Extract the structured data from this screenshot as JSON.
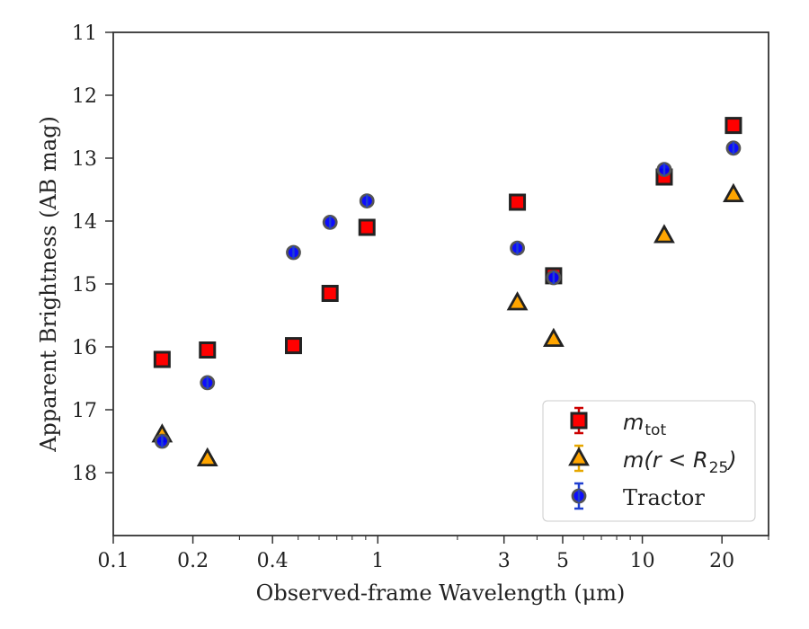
{
  "chart_data": {
    "type": "scatter",
    "xlabel": "Observed-frame Wavelength (μm)",
    "ylabel": "Apparent Brightness (AB mag)",
    "x_scale": "log",
    "xlim": [
      0.1,
      30
    ],
    "ylim": [
      19,
      11
    ],
    "y_inverted": true,
    "x_ticks": [
      0.1,
      0.2,
      0.4,
      1,
      3,
      5,
      10,
      20
    ],
    "x_tick_labels": [
      "0.1",
      "0.2",
      "0.4",
      "1",
      "3",
      "5",
      "10",
      "20"
    ],
    "y_ticks": [
      11,
      12,
      13,
      14,
      15,
      16,
      17,
      18
    ],
    "y_tick_labels": [
      "11",
      "12",
      "13",
      "14",
      "15",
      "16",
      "17",
      "18"
    ],
    "grid": false,
    "legend_position": "bottom-right",
    "series": [
      {
        "name": "m_tot",
        "legend_label": "m_tot",
        "marker": "square",
        "color": "#ff0000",
        "edge": "#222222",
        "errorbar_color": "#cc0000",
        "points": [
          {
            "x": 0.153,
            "y": 16.2
          },
          {
            "x": 0.227,
            "y": 16.05
          },
          {
            "x": 0.48,
            "y": 15.98
          },
          {
            "x": 0.66,
            "y": 15.15
          },
          {
            "x": 0.91,
            "y": 14.1
          },
          {
            "x": 3.37,
            "y": 13.7
          },
          {
            "x": 4.62,
            "y": 14.87
          },
          {
            "x": 12.1,
            "y": 13.3
          },
          {
            "x": 22.1,
            "y": 12.48
          }
        ]
      },
      {
        "name": "m(r < R25)",
        "legend_label": "m(r < R25)",
        "marker": "triangle",
        "color": "#ffa500",
        "edge": "#222222",
        "errorbar_color": "#e6a700",
        "points": [
          {
            "x": 0.153,
            "y": 17.4
          },
          {
            "x": 0.227,
            "y": 17.78
          },
          {
            "x": 3.37,
            "y": 15.3
          },
          {
            "x": 4.62,
            "y": 15.88
          },
          {
            "x": 12.1,
            "y": 14.23
          },
          {
            "x": 22.1,
            "y": 13.58
          }
        ]
      },
      {
        "name": "Tractor",
        "legend_label": "Tractor",
        "marker": "circle",
        "color": "#0000ff",
        "edge": "#555555",
        "errorbar_color": "#1f3fd0",
        "points": [
          {
            "x": 0.153,
            "y": 17.5
          },
          {
            "x": 0.227,
            "y": 16.57
          },
          {
            "x": 0.48,
            "y": 14.5
          },
          {
            "x": 0.66,
            "y": 14.02
          },
          {
            "x": 0.91,
            "y": 13.68
          },
          {
            "x": 3.37,
            "y": 14.43
          },
          {
            "x": 4.62,
            "y": 14.9
          },
          {
            "x": 12.1,
            "y": 13.18
          },
          {
            "x": 22.1,
            "y": 12.84
          }
        ]
      }
    ]
  }
}
